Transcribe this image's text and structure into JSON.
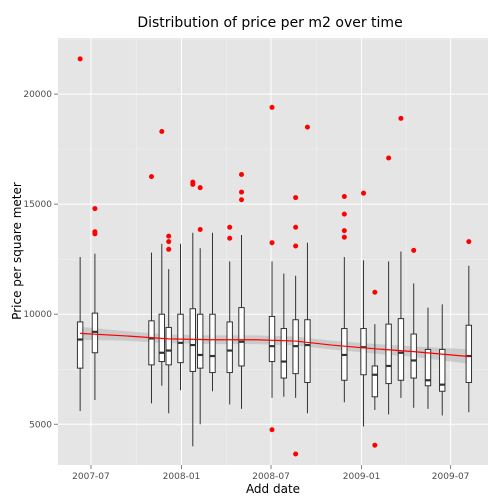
{
  "chart_data": {
    "type": "box",
    "title": "Distribution of price per m2 over time",
    "xlabel": "Add date",
    "ylabel": "Price per square meter",
    "x_range": [
      "2007-04-25",
      "2009-09-15"
    ],
    "ylim": [
      3150,
      22550
    ],
    "x_ticks": [
      {
        "date": "2007-07-01",
        "label": "2007-07"
      },
      {
        "date": "2008-01-01",
        "label": "2008-01"
      },
      {
        "date": "2008-07-01",
        "label": "2008-07"
      },
      {
        "date": "2009-01-01",
        "label": "2009-01"
      },
      {
        "date": "2009-07-01",
        "label": "2009-07"
      }
    ],
    "y_ticks": [
      5000,
      10000,
      15000,
      20000
    ],
    "grid": true,
    "colors": {
      "panel": "#e5e5e5",
      "grid_major": "#ffffff",
      "grid_minor": "#f2f2f2",
      "box_fill": "#ffffff",
      "box_line": "#333333",
      "outlier": "#ff0000",
      "smooth_line": "#ff0000",
      "smooth_band": "#bfbfbf"
    },
    "boxes": [
      {
        "date": "2007-06-09",
        "lower": 5600,
        "q1": 7550,
        "median": 8850,
        "q3": 9650,
        "upper": 12600,
        "outliers": [
          21600
        ]
      },
      {
        "date": "2007-07-09",
        "lower": 6100,
        "q1": 8250,
        "median": 9200,
        "q3": 10050,
        "upper": 12750,
        "outliers": [
          14800,
          13750,
          13650
        ]
      },
      {
        "date": "2007-11-01",
        "lower": 5950,
        "q1": 7700,
        "median": 8900,
        "q3": 9700,
        "upper": 12800,
        "outliers": [
          16250
        ]
      },
      {
        "date": "2007-11-22",
        "lower": 6750,
        "q1": 7850,
        "median": 8250,
        "q3": 10000,
        "upper": 13200,
        "outliers": [
          18300
        ]
      },
      {
        "date": "2007-12-06",
        "lower": 5500,
        "q1": 7700,
        "median": 8350,
        "q3": 9400,
        "upper": 12050,
        "outliers": [
          13550,
          13300,
          12950
        ]
      },
      {
        "date": "2007-12-30",
        "lower": 6550,
        "q1": 7800,
        "median": 8700,
        "q3": 10000,
        "upper": 13200,
        "outliers": []
      },
      {
        "date": "2008-01-24",
        "lower": 4000,
        "q1": 7400,
        "median": 8600,
        "q3": 10250,
        "upper": 13700,
        "outliers": [
          16000,
          15900
        ]
      },
      {
        "date": "2008-02-08",
        "lower": 5000,
        "q1": 7550,
        "median": 8150,
        "q3": 10000,
        "upper": 13000,
        "outliers": [
          15750,
          13850
        ]
      },
      {
        "date": "2008-03-04",
        "lower": 6500,
        "q1": 7350,
        "median": 8100,
        "q3": 10000,
        "upper": 13700,
        "outliers": []
      },
      {
        "date": "2008-04-08",
        "lower": 5900,
        "q1": 7350,
        "median": 8350,
        "q3": 9650,
        "upper": 12400,
        "outliers": [
          13950,
          13450
        ]
      },
      {
        "date": "2008-05-02",
        "lower": 5700,
        "q1": 7650,
        "median": 8750,
        "q3": 10300,
        "upper": 13600,
        "outliers": [
          16350,
          15550,
          15200
        ]
      },
      {
        "date": "2008-07-03",
        "lower": 6200,
        "q1": 7850,
        "median": 8550,
        "q3": 9900,
        "upper": 12400,
        "outliers": [
          19400,
          13250,
          4750
        ]
      },
      {
        "date": "2008-07-27",
        "lower": 6250,
        "q1": 7100,
        "median": 7850,
        "q3": 9350,
        "upper": 11850,
        "outliers": []
      },
      {
        "date": "2008-08-20",
        "lower": 6200,
        "q1": 7300,
        "median": 8550,
        "q3": 9750,
        "upper": 11750,
        "outliers": [
          15300,
          13950,
          13100,
          3650
        ]
      },
      {
        "date": "2008-09-13",
        "lower": 5500,
        "q1": 6900,
        "median": 8600,
        "q3": 9750,
        "upper": 13250,
        "outliers": [
          18500
        ]
      },
      {
        "date": "2008-11-27",
        "lower": 6000,
        "q1": 7000,
        "median": 8150,
        "q3": 9350,
        "upper": 12600,
        "outliers": [
          15350,
          14550,
          13800,
          13500
        ]
      },
      {
        "date": "2009-01-05",
        "lower": 4900,
        "q1": 7250,
        "median": 8500,
        "q3": 9350,
        "upper": 12450,
        "outliers": [
          15500
        ]
      },
      {
        "date": "2009-01-28",
        "lower": 5650,
        "q1": 6250,
        "median": 7250,
        "q3": 7650,
        "upper": 9550,
        "outliers": [
          11000,
          4050
        ]
      },
      {
        "date": "2009-02-25",
        "lower": 5450,
        "q1": 6850,
        "median": 7650,
        "q3": 9550,
        "upper": 12400,
        "outliers": [
          17100
        ]
      },
      {
        "date": "2009-03-22",
        "lower": 6200,
        "q1": 7000,
        "median": 8250,
        "q3": 9800,
        "upper": 12850,
        "outliers": [
          18900
        ]
      },
      {
        "date": "2009-04-17",
        "lower": 5750,
        "q1": 7100,
        "median": 7900,
        "q3": 9100,
        "upper": 11400,
        "outliers": [
          12900
        ]
      },
      {
        "date": "2009-05-16",
        "lower": 5700,
        "q1": 6750,
        "median": 7000,
        "q3": 8400,
        "upper": 10300,
        "outliers": []
      },
      {
        "date": "2009-06-14",
        "lower": 5400,
        "q1": 6500,
        "median": 6800,
        "q3": 8400,
        "upper": 10450,
        "outliers": []
      },
      {
        "date": "2009-08-07",
        "lower": 5550,
        "q1": 6900,
        "median": 8100,
        "q3": 9500,
        "upper": 12200,
        "outliers": [
          13300
        ]
      }
    ],
    "smooth": [
      {
        "date": "2007-06-09",
        "y": 9130
      },
      {
        "date": "2007-09-06",
        "y": 9020
      },
      {
        "date": "2007-12-06",
        "y": 8880
      },
      {
        "date": "2008-03-04",
        "y": 8840
      },
      {
        "date": "2008-06-01",
        "y": 8840
      },
      {
        "date": "2008-08-20",
        "y": 8780
      },
      {
        "date": "2008-11-01",
        "y": 8600
      },
      {
        "date": "2009-01-28",
        "y": 8430
      },
      {
        "date": "2009-04-17",
        "y": 8300
      },
      {
        "date": "2009-08-07",
        "y": 8080
      }
    ],
    "smooth_band_halfwidth": [
      300,
      220,
      200,
      200,
      200,
      200,
      200,
      220,
      240,
      330
    ]
  }
}
